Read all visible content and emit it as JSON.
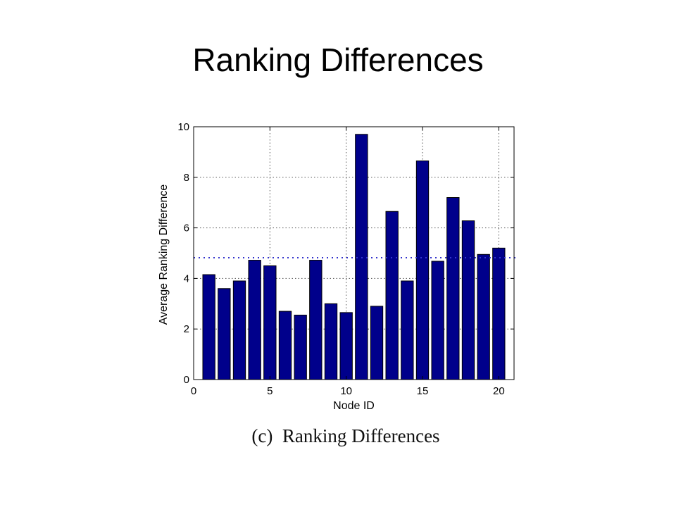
{
  "slide": {
    "title": "Ranking Differences"
  },
  "chart_data": {
    "type": "bar",
    "caption": "(c)  Ranking Differences",
    "xlabel": "Node ID",
    "ylabel": "Average Ranking Difference",
    "x": [
      1,
      2,
      3,
      4,
      5,
      6,
      7,
      8,
      9,
      10,
      11,
      12,
      13,
      14,
      15,
      16,
      17,
      18,
      19,
      20
    ],
    "values": [
      4.15,
      3.6,
      3.9,
      4.72,
      4.5,
      2.7,
      2.55,
      4.72,
      3.0,
      2.65,
      9.7,
      2.9,
      6.65,
      3.9,
      8.65,
      4.68,
      7.2,
      6.28,
      4.95,
      5.2
    ],
    "xlim": [
      0,
      21
    ],
    "ylim": [
      0,
      10
    ],
    "xticks": [
      0,
      5,
      10,
      15,
      20
    ],
    "yticks": [
      0,
      2,
      4,
      6,
      8,
      10
    ],
    "reference_line": 4.82,
    "grid": true,
    "bar_color": "#00008b",
    "reference_line_color": "#3333cc"
  }
}
